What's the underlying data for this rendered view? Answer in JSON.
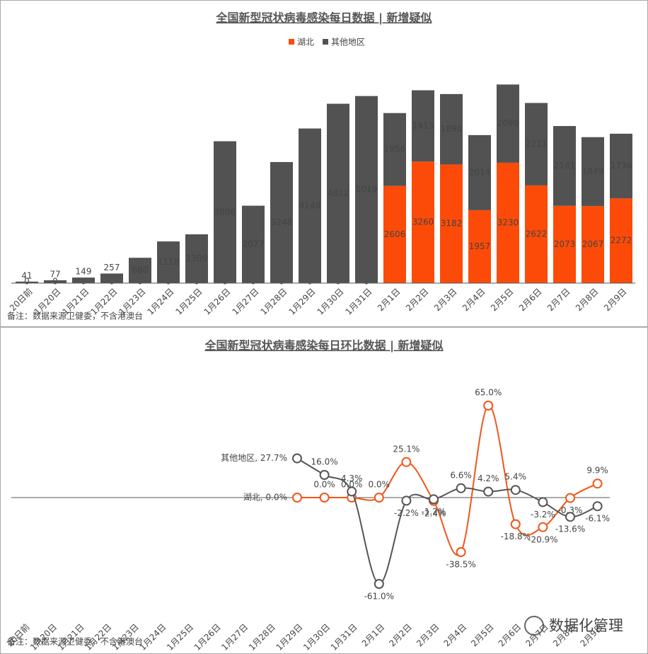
{
  "chart_data": [
    {
      "type": "stacked_bar",
      "title": "全国新型冠状病毒感染每日数据 | 新增疑似",
      "categories": [
        "20日前",
        "1月20日",
        "1月21日",
        "1月22日",
        "1月23日",
        "1月24日",
        "1月25日",
        "1月26日",
        "1月27日",
        "1月28日",
        "1月29日",
        "1月30日",
        "1月31日",
        "2月1日",
        "2月2日",
        "2月3日",
        "2月4日",
        "2月5日",
        "2月6日",
        "2月7日",
        "2月8日",
        "2月9日"
      ],
      "series": [
        {
          "name": "湖北",
          "color": "#fc4b08",
          "values": [
            0,
            0,
            0,
            0,
            0,
            0,
            0,
            0,
            0,
            0,
            0,
            0,
            0,
            2606,
            3260,
            3182,
            1957,
            3230,
            2622,
            2073,
            2067,
            2272
          ]
        },
        {
          "name": "其他地区",
          "color": "#525252",
          "values": [
            41,
            77,
            149,
            257,
            680,
            1118,
            1309,
            3806,
            2077,
            3248,
            4148,
            4812,
            5019,
            1956,
            1913,
            1890,
            2014,
            2098,
            2211,
            2141,
            1849,
            1736
          ]
        }
      ],
      "ylim": [
        0,
        6000
      ],
      "legend": "top",
      "note": "备注：数据来源卫健委，不含港澳台"
    },
    {
      "type": "line",
      "title": "全国新型冠状病毒感染每日环比数据 | 新增疑似",
      "categories": [
        "20日前",
        "1月20日",
        "1月21日",
        "1月22日",
        "1月23日",
        "1月24日",
        "1月25日",
        "1月26日",
        "1月27日",
        "1月28日",
        "1月29日",
        "1月30日",
        "1月31日",
        "2月1日",
        "2月2日",
        "2月3日",
        "2月4日",
        "2月5日",
        "2月6日",
        "2月7日",
        "2月8日",
        "2月9日"
      ],
      "series": [
        {
          "name": "湖北",
          "color": "#f0561a",
          "values": [
            null,
            null,
            null,
            null,
            null,
            null,
            null,
            null,
            null,
            null,
            0.0,
            0.0,
            0.0,
            0.0,
            25.1,
            -2.4,
            -38.5,
            65.0,
            -18.8,
            -20.9,
            -0.3,
            9.9
          ],
          "value_labels": [
            null,
            null,
            null,
            null,
            null,
            null,
            null,
            null,
            null,
            null,
            "湖北, 0.0%",
            "0.0%",
            "0.0%",
            "0.0%",
            "25.1%",
            "-2.4%",
            "-38.5%",
            "65.0%",
            "-18.8%",
            "-20.9%",
            "-0.3%",
            "9.9%"
          ]
        },
        {
          "name": "其他地区",
          "color": "#555555",
          "values": [
            null,
            null,
            null,
            null,
            null,
            null,
            null,
            null,
            null,
            null,
            27.7,
            16.0,
            4.3,
            -61.0,
            -2.2,
            -1.2,
            6.6,
            4.2,
            5.4,
            -3.2,
            -13.6,
            -6.1
          ],
          "value_labels": [
            null,
            null,
            null,
            null,
            null,
            null,
            null,
            null,
            null,
            null,
            "其他地区, 27.7%",
            "16.0%",
            "4.3%",
            "-61.0%",
            "-2.2%",
            "-1.2%",
            "6.6%",
            "4.2%",
            "5.4%",
            "-3.2%",
            "-13.6%",
            "-6.1%"
          ]
        }
      ],
      "ylim": [
        -90,
        90
      ],
      "note": "备注：数据来源卫健委，不含港澳台",
      "annotations": [
        "数据化管理"
      ]
    }
  ]
}
